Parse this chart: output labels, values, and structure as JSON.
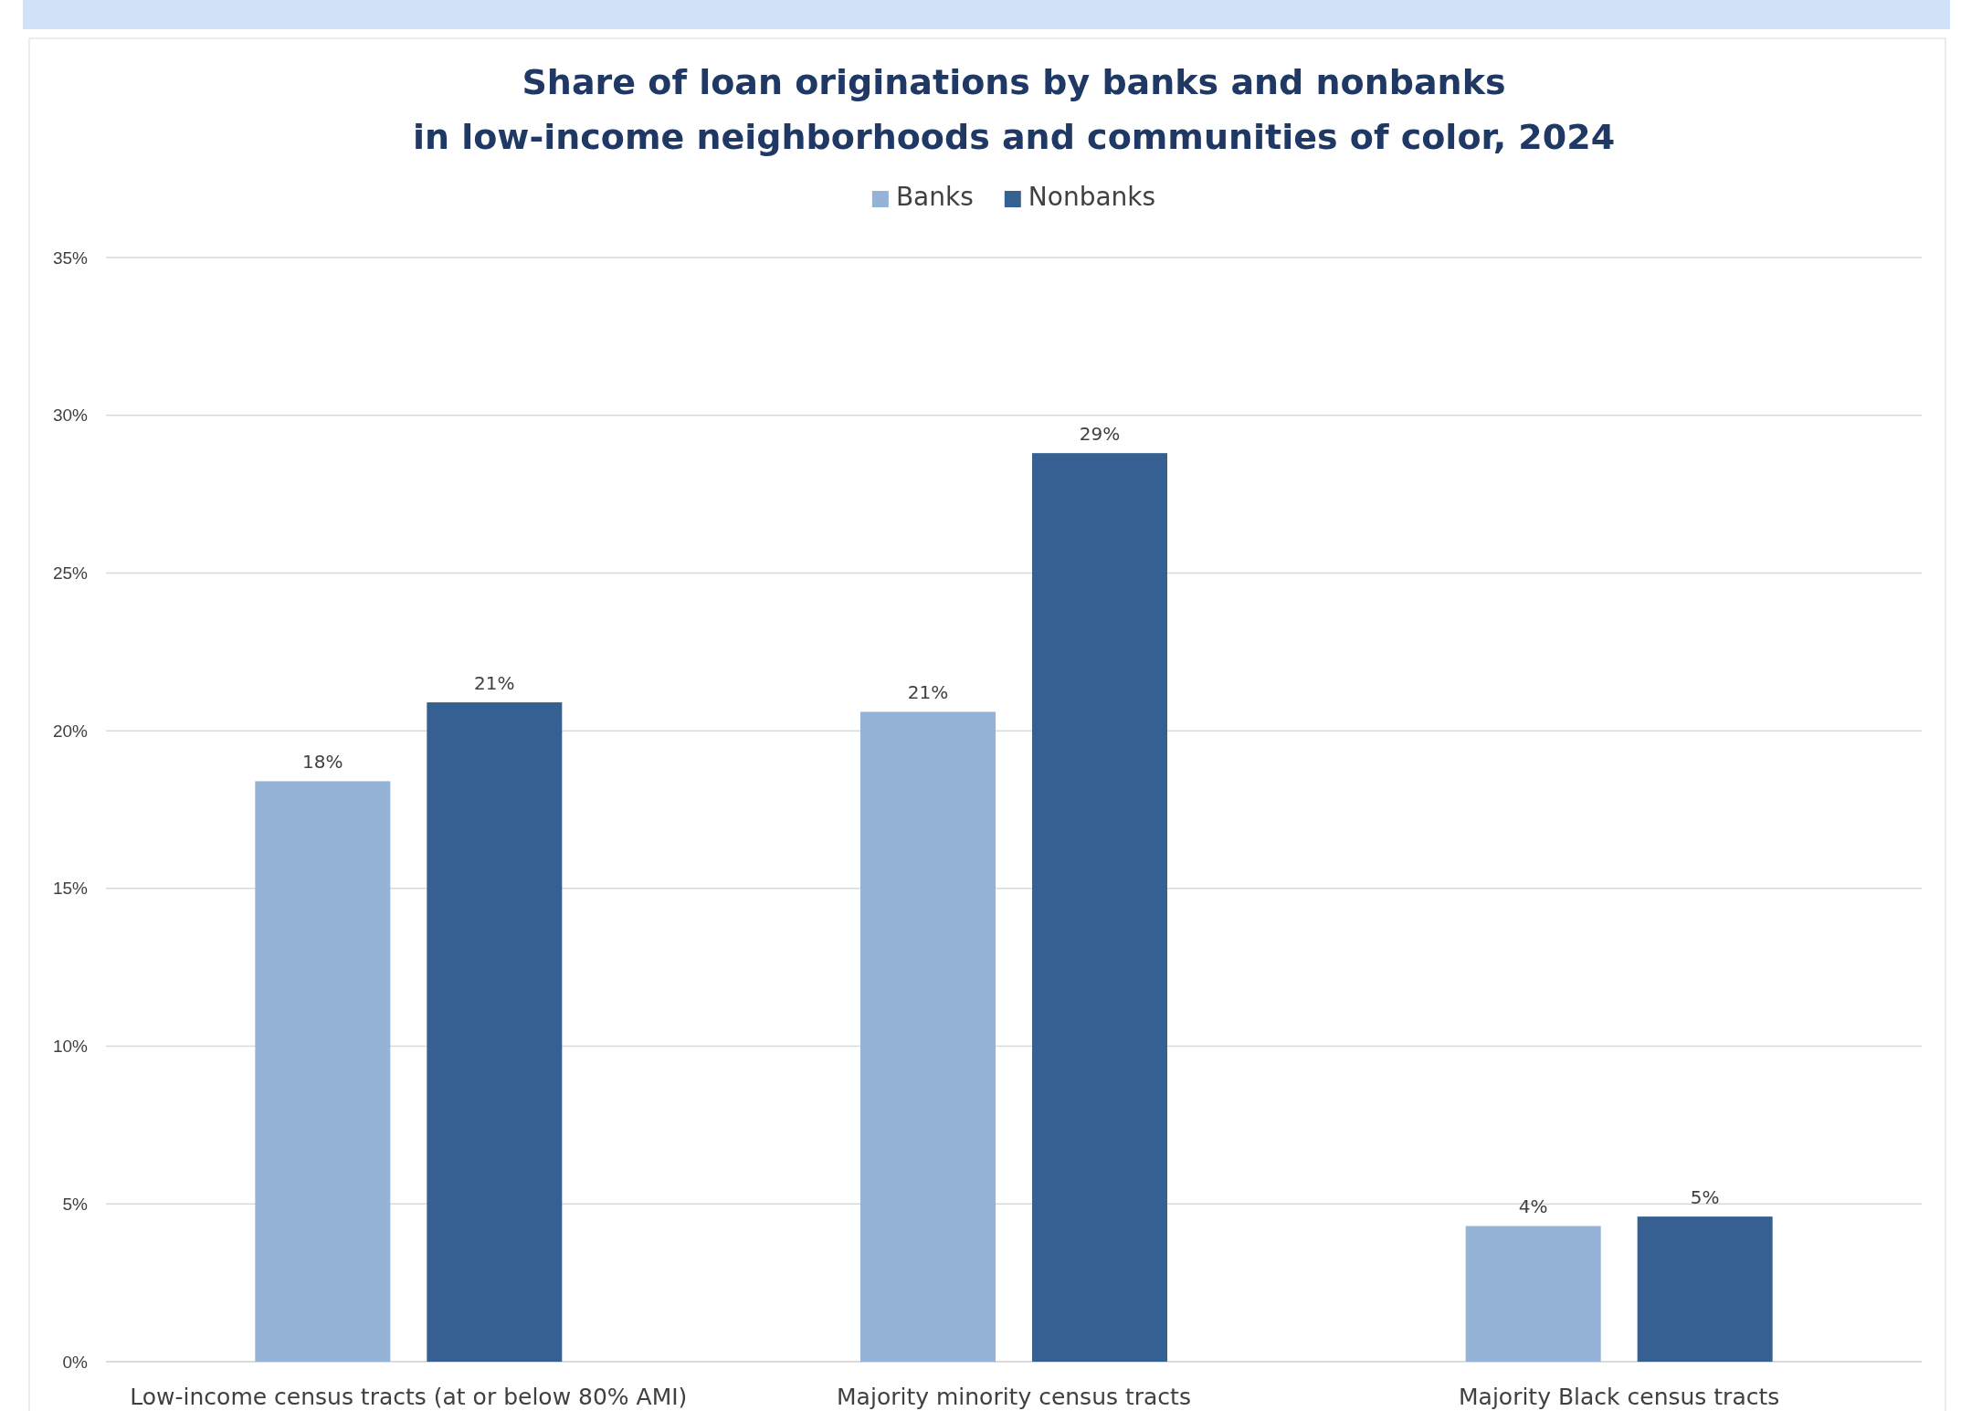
{
  "chart_data": {
    "type": "bar",
    "title": "Share of loan originations by banks and nonbanks",
    "subtitle": "in low-income neighborhoods and communities of color, 2024",
    "categories": [
      "Low-income census tracts (at or below 80% AMI)",
      "Majority minority census tracts",
      "Majority Black census tracts"
    ],
    "series": [
      {
        "name": "Banks",
        "color": "#95b3d7",
        "values": [
          18.4,
          20.6,
          4.3
        ],
        "value_labels": [
          "18%",
          "21%",
          "4%"
        ]
      },
      {
        "name": "Nonbanks",
        "color": "#366092",
        "values": [
          20.9,
          28.8,
          4.6
        ],
        "value_labels": [
          "21%",
          "29%",
          "5%"
        ]
      }
    ],
    "ylim": [
      0,
      35
    ],
    "yticks": [
      {
        "value": 0,
        "label": "0%"
      },
      {
        "value": 5,
        "label": "5%"
      },
      {
        "value": 10,
        "label": "10%"
      },
      {
        "value": 15,
        "label": "15%"
      },
      {
        "value": 20,
        "label": "20%"
      },
      {
        "value": 25,
        "label": "25%"
      },
      {
        "value": 30,
        "label": "30%"
      },
      {
        "value": 35,
        "label": "35%"
      }
    ],
    "grid": "y",
    "legend": "top"
  }
}
